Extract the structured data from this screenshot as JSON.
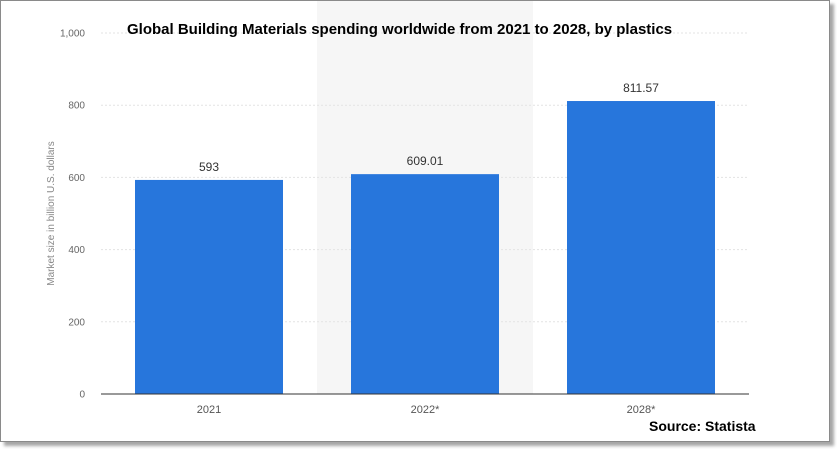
{
  "colors": {
    "bar": "#2776dc",
    "highlight_band": "#f6f6f6",
    "gridline": "#e3e3e3",
    "baseline": "#333333"
  },
  "chart_data": {
    "type": "bar",
    "title": "Global Building Materials spending worldwide from 2021 to 2028, by plastics",
    "xlabel": "",
    "ylabel": "Market size in billion U.S. dollars",
    "categories": [
      "2021",
      "2022*",
      "2028*"
    ],
    "values": [
      593,
      609.01,
      811.57
    ],
    "value_labels": [
      "593",
      "609.01",
      "811.57"
    ],
    "ylim": [
      0,
      1000
    ],
    "yticks": [
      0,
      200,
      400,
      600,
      800,
      1000
    ],
    "ytick_labels": [
      "0",
      "200",
      "400",
      "600",
      "800",
      "1,000"
    ],
    "highlighted_category": "2022*",
    "grid": true,
    "legend": "none",
    "source": "Source: Statista"
  }
}
